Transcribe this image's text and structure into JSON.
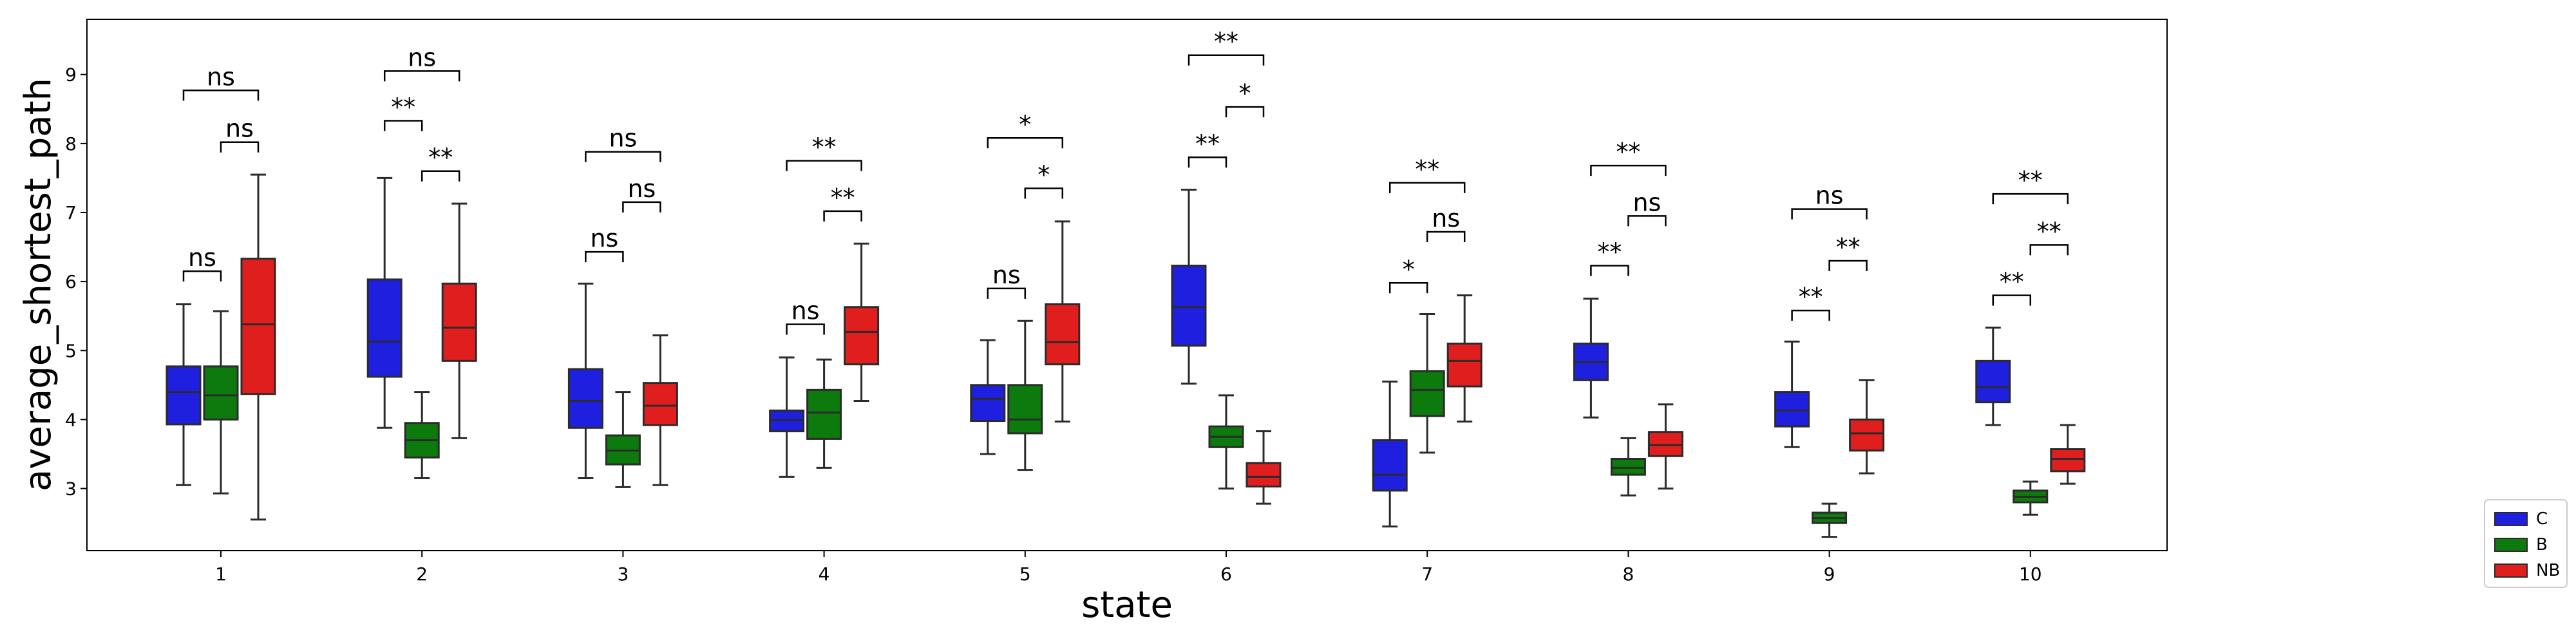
{
  "chart_data": {
    "type": "boxplot",
    "xlabel": "state",
    "ylabel": "average_shortest_path",
    "categories": [
      "1",
      "2",
      "3",
      "4",
      "5",
      "6",
      "7",
      "8",
      "9",
      "10"
    ],
    "ylim": [
      2.1,
      9.8
    ],
    "yticks": [
      3,
      4,
      5,
      6,
      7,
      8,
      9
    ],
    "grid": false,
    "legend_position": "outside-right",
    "series": [
      {
        "name": "C",
        "color": "#1f1fe0",
        "boxes": [
          {
            "whislo": 3.05,
            "q1": 3.93,
            "med": 4.4,
            "q3": 4.77,
            "whishi": 5.67
          },
          {
            "whislo": 3.88,
            "q1": 4.62,
            "med": 5.13,
            "q3": 6.03,
            "whishi": 7.5
          },
          {
            "whislo": 3.15,
            "q1": 3.88,
            "med": 4.27,
            "q3": 4.73,
            "whishi": 5.97
          },
          {
            "whislo": 3.17,
            "q1": 3.83,
            "med": 3.99,
            "q3": 4.13,
            "whishi": 4.9
          },
          {
            "whislo": 3.5,
            "q1": 3.98,
            "med": 4.3,
            "q3": 4.5,
            "whishi": 5.15
          },
          {
            "whislo": 4.52,
            "q1": 5.07,
            "med": 5.63,
            "q3": 6.23,
            "whishi": 7.33
          },
          {
            "whislo": 2.45,
            "q1": 2.97,
            "med": 3.2,
            "q3": 3.7,
            "whishi": 4.55
          },
          {
            "whislo": 4.03,
            "q1": 4.57,
            "med": 4.83,
            "q3": 5.1,
            "whishi": 5.75
          },
          {
            "whislo": 3.6,
            "q1": 3.9,
            "med": 4.13,
            "q3": 4.4,
            "whishi": 5.13
          },
          {
            "whislo": 3.92,
            "q1": 4.25,
            "med": 4.47,
            "q3": 4.85,
            "whishi": 5.33
          }
        ]
      },
      {
        "name": "B",
        "color": "#0c7a0c",
        "boxes": [
          {
            "whislo": 2.93,
            "q1": 4.0,
            "med": 4.35,
            "q3": 4.77,
            "whishi": 5.57
          },
          {
            "whislo": 3.15,
            "q1": 3.45,
            "med": 3.7,
            "q3": 3.95,
            "whishi": 4.4
          },
          {
            "whislo": 3.02,
            "q1": 3.35,
            "med": 3.55,
            "q3": 3.77,
            "whishi": 4.4
          },
          {
            "whislo": 3.3,
            "q1": 3.72,
            "med": 4.1,
            "q3": 4.43,
            "whishi": 4.87
          },
          {
            "whislo": 3.27,
            "q1": 3.8,
            "med": 4.0,
            "q3": 4.5,
            "whishi": 5.43
          },
          {
            "whislo": 3.0,
            "q1": 3.6,
            "med": 3.75,
            "q3": 3.9,
            "whishi": 4.35
          },
          {
            "whislo": 3.52,
            "q1": 4.05,
            "med": 4.43,
            "q3": 4.7,
            "whishi": 5.53
          },
          {
            "whislo": 2.9,
            "q1": 3.2,
            "med": 3.3,
            "q3": 3.43,
            "whishi": 3.73
          },
          {
            "whislo": 2.3,
            "q1": 2.5,
            "med": 2.57,
            "q3": 2.65,
            "whishi": 2.78
          },
          {
            "whislo": 2.62,
            "q1": 2.8,
            "med": 2.88,
            "q3": 2.97,
            "whishi": 3.1
          }
        ]
      },
      {
        "name": "NB",
        "color": "#e01e1e",
        "boxes": [
          {
            "whislo": 2.55,
            "q1": 4.37,
            "med": 5.38,
            "q3": 6.33,
            "whishi": 7.55
          },
          {
            "whislo": 3.73,
            "q1": 4.85,
            "med": 5.33,
            "q3": 5.97,
            "whishi": 7.13
          },
          {
            "whislo": 3.05,
            "q1": 3.92,
            "med": 4.2,
            "q3": 4.53,
            "whishi": 5.22
          },
          {
            "whislo": 4.27,
            "q1": 4.8,
            "med": 5.27,
            "q3": 5.63,
            "whishi": 6.55
          },
          {
            "whislo": 3.97,
            "q1": 4.8,
            "med": 5.12,
            "q3": 5.67,
            "whishi": 6.87
          },
          {
            "whislo": 2.78,
            "q1": 3.03,
            "med": 3.17,
            "q3": 3.37,
            "whishi": 3.83
          },
          {
            "whislo": 3.97,
            "q1": 4.48,
            "med": 4.85,
            "q3": 5.1,
            "whishi": 5.8
          },
          {
            "whislo": 3.0,
            "q1": 3.47,
            "med": 3.63,
            "q3": 3.82,
            "whishi": 4.22
          },
          {
            "whislo": 3.22,
            "q1": 3.55,
            "med": 3.8,
            "q3": 4.0,
            "whishi": 4.57
          },
          {
            "whislo": 3.07,
            "q1": 3.25,
            "med": 3.43,
            "q3": 3.57,
            "whishi": 3.92
          }
        ]
      }
    ],
    "annotations": [
      {
        "group": 0,
        "from": 0,
        "to": 1,
        "y": 6.15,
        "label": "ns"
      },
      {
        "group": 0,
        "from": 1,
        "to": 2,
        "y": 8.02,
        "label": "ns"
      },
      {
        "group": 0,
        "from": 0,
        "to": 2,
        "y": 8.77,
        "label": "ns"
      },
      {
        "group": 1,
        "from": 0,
        "to": 1,
        "y": 8.33,
        "label": "**"
      },
      {
        "group": 1,
        "from": 1,
        "to": 2,
        "y": 7.6,
        "label": "**"
      },
      {
        "group": 1,
        "from": 0,
        "to": 2,
        "y": 9.05,
        "label": "ns"
      },
      {
        "group": 2,
        "from": 0,
        "to": 1,
        "y": 6.43,
        "label": "ns"
      },
      {
        "group": 2,
        "from": 1,
        "to": 2,
        "y": 7.15,
        "label": "ns"
      },
      {
        "group": 2,
        "from": 0,
        "to": 2,
        "y": 7.88,
        "label": "ns"
      },
      {
        "group": 3,
        "from": 0,
        "to": 1,
        "y": 5.38,
        "label": "ns"
      },
      {
        "group": 3,
        "from": 1,
        "to": 2,
        "y": 7.02,
        "label": "**"
      },
      {
        "group": 3,
        "from": 0,
        "to": 2,
        "y": 7.75,
        "label": "**"
      },
      {
        "group": 4,
        "from": 0,
        "to": 1,
        "y": 5.9,
        "label": "ns"
      },
      {
        "group": 4,
        "from": 1,
        "to": 2,
        "y": 7.35,
        "label": "*"
      },
      {
        "group": 4,
        "from": 0,
        "to": 2,
        "y": 8.08,
        "label": "*"
      },
      {
        "group": 5,
        "from": 0,
        "to": 1,
        "y": 7.8,
        "label": "**"
      },
      {
        "group": 5,
        "from": 1,
        "to": 2,
        "y": 8.53,
        "label": "*"
      },
      {
        "group": 5,
        "from": 0,
        "to": 2,
        "y": 9.28,
        "label": "**"
      },
      {
        "group": 6,
        "from": 0,
        "to": 1,
        "y": 5.98,
        "label": "*"
      },
      {
        "group": 6,
        "from": 1,
        "to": 2,
        "y": 6.72,
        "label": "ns"
      },
      {
        "group": 6,
        "from": 0,
        "to": 2,
        "y": 7.43,
        "label": "**"
      },
      {
        "group": 7,
        "from": 0,
        "to": 1,
        "y": 6.23,
        "label": "**"
      },
      {
        "group": 7,
        "from": 1,
        "to": 2,
        "y": 6.95,
        "label": "ns"
      },
      {
        "group": 7,
        "from": 0,
        "to": 2,
        "y": 7.68,
        "label": "**"
      },
      {
        "group": 8,
        "from": 0,
        "to": 1,
        "y": 5.58,
        "label": "**"
      },
      {
        "group": 8,
        "from": 1,
        "to": 2,
        "y": 6.3,
        "label": "**"
      },
      {
        "group": 8,
        "from": 0,
        "to": 2,
        "y": 7.05,
        "label": "ns"
      },
      {
        "group": 9,
        "from": 0,
        "to": 1,
        "y": 5.8,
        "label": "**"
      },
      {
        "group": 9,
        "from": 1,
        "to": 2,
        "y": 6.53,
        "label": "**"
      },
      {
        "group": 9,
        "from": 0,
        "to": 2,
        "y": 7.27,
        "label": "**"
      }
    ]
  }
}
